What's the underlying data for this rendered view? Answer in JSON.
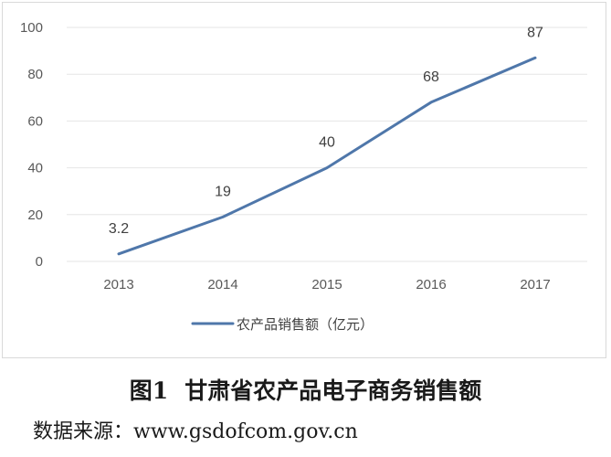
{
  "chart_data": {
    "type": "line",
    "categories": [
      "2013",
      "2014",
      "2015",
      "2016",
      "2017"
    ],
    "series": [
      {
        "name": "农产品销售额（亿元）",
        "values": [
          3.2,
          19,
          40,
          68,
          87
        ],
        "color": "#4f77aa"
      }
    ],
    "data_labels": [
      "3.2",
      "19",
      "40",
      "68",
      "87"
    ],
    "ylim": [
      0,
      100
    ],
    "yticks": [
      0,
      20,
      40,
      60,
      80,
      100
    ],
    "grid": true,
    "legend": "bottom"
  },
  "figure": {
    "number": "图1",
    "title": "甘肃省农产品电子商务销售额",
    "source": "数据来源：www.gsdofcom.gov.cn"
  }
}
